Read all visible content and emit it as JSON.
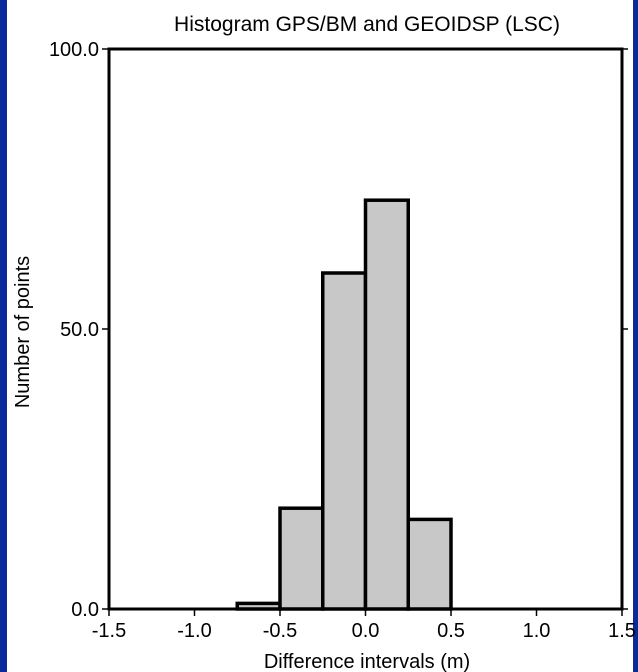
{
  "chart_data": {
    "type": "bar",
    "title": "Histogram GPS/BM and GEOIDSP (LSC)",
    "xlabel": "Difference intervals (m)",
    "ylabel": "Number of points",
    "xlim": [
      -1.5,
      1.5
    ],
    "ylim": [
      0,
      100
    ],
    "x_ticks": [
      "-1.5",
      "-1.0",
      "-0.5",
      "0.0",
      "0.5",
      "1.0",
      "1.5"
    ],
    "y_ticks": [
      "0.0",
      "50.0",
      "100.0"
    ],
    "bins": [
      {
        "x0": -0.75,
        "x1": -0.5,
        "value": 1
      },
      {
        "x0": -0.5,
        "x1": -0.25,
        "value": 18
      },
      {
        "x0": -0.25,
        "x1": 0.0,
        "value": 60
      },
      {
        "x0": 0.0,
        "x1": 0.25,
        "value": 73
      },
      {
        "x0": 0.25,
        "x1": 0.5,
        "value": 16
      }
    ],
    "bar_color": "#c8c8c8",
    "grid": false
  },
  "colors": {
    "background": "#0b2a9a",
    "plot_background": "#ffffff"
  }
}
